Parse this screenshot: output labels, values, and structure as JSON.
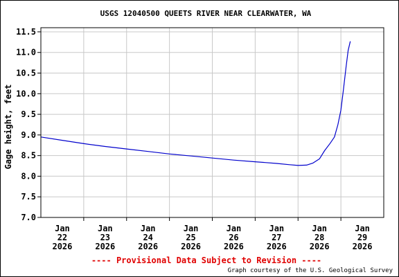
{
  "chart_data": {
    "type": "line",
    "title": "USGS 12040500 QUEETS RIVER NEAR CLEARWATER, WA",
    "xlabel": "",
    "ylabel": "Gage height, feet",
    "ylim": [
      7.0,
      11.6
    ],
    "yticks": [
      "11.5",
      "11.0",
      "10.5",
      "10.0",
      "9.5",
      "9.0",
      "8.5",
      "8.0",
      "7.5",
      "7.0"
    ],
    "xlim": [
      0,
      8
    ],
    "xticks": [
      {
        "x": 0.5,
        "month": "Jan",
        "day": "22",
        "year": "2026"
      },
      {
        "x": 1.5,
        "month": "Jan",
        "day": "23",
        "year": "2026"
      },
      {
        "x": 2.5,
        "month": "Jan",
        "day": "24",
        "year": "2026"
      },
      {
        "x": 3.5,
        "month": "Jan",
        "day": "25",
        "year": "2026"
      },
      {
        "x": 4.5,
        "month": "Jan",
        "day": "26",
        "year": "2026"
      },
      {
        "x": 5.5,
        "month": "Jan",
        "day": "27",
        "year": "2026"
      },
      {
        "x": 6.5,
        "month": "Jan",
        "day": "28",
        "year": "2026"
      },
      {
        "x": 7.5,
        "month": "Jan",
        "day": "29",
        "year": "2026"
      }
    ],
    "grid": true,
    "series": [
      {
        "color": "#0000cc",
        "x": [
          0,
          0.5,
          1,
          1.5,
          2,
          2.5,
          3,
          3.5,
          4,
          4.5,
          5,
          5.5,
          5.8,
          6.0,
          6.2,
          6.35,
          6.5,
          6.62,
          6.75,
          6.85,
          6.93,
          7.0,
          7.06,
          7.12,
          7.17,
          7.22
        ],
        "y": [
          8.95,
          8.87,
          8.79,
          8.72,
          8.66,
          8.6,
          8.54,
          8.49,
          8.44,
          8.39,
          8.35,
          8.31,
          8.28,
          8.26,
          8.27,
          8.32,
          8.42,
          8.62,
          8.8,
          8.95,
          9.25,
          9.6,
          10.1,
          10.65,
          11.05,
          11.27
        ]
      }
    ]
  },
  "footer": {
    "provisional": "---- Provisional Data Subject to Revision ----",
    "credit": "Graph courtesy of the U.S. Geological Survey"
  }
}
